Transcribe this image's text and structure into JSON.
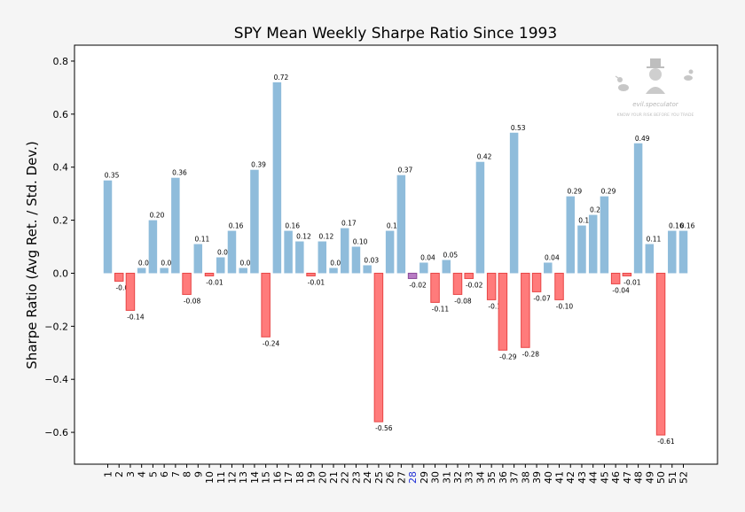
{
  "chart_data": {
    "type": "bar",
    "title": "SPY Mean Weekly Sharpe Ratio Since 1993",
    "xlabel": "",
    "ylabel": "Sharpe Ratio (Avg Ret. / Std. Dev.)",
    "ylim": [
      -0.72,
      0.86
    ],
    "yticks": [
      -0.6,
      -0.4,
      -0.2,
      0.0,
      0.2,
      0.4,
      0.6,
      0.8
    ],
    "ytick_labels": [
      "−0.6",
      "−0.4",
      "−0.2",
      "0.0",
      "0.2",
      "0.4",
      "0.6",
      "0.8"
    ],
    "grid": false,
    "categories": [
      "1",
      "2",
      "3",
      "4",
      "5",
      "6",
      "7",
      "8",
      "9",
      "10",
      "11",
      "12",
      "13",
      "14",
      "15",
      "16",
      "17",
      "18",
      "19",
      "20",
      "21",
      "22",
      "23",
      "24",
      "25",
      "26",
      "27",
      "28",
      "29",
      "30",
      "31",
      "32",
      "33",
      "34",
      "35",
      "36",
      "37",
      "38",
      "39",
      "40",
      "41",
      "42",
      "43",
      "44",
      "45",
      "46",
      "47",
      "48",
      "49",
      "50",
      "51",
      "52"
    ],
    "values": [
      0.35,
      -0.03,
      -0.14,
      0.02,
      0.2,
      0.02,
      0.36,
      -0.08,
      0.11,
      -0.01,
      0.06,
      0.16,
      0.02,
      0.39,
      -0.24,
      0.72,
      0.16,
      0.12,
      -0.01,
      0.12,
      0.02,
      0.17,
      0.1,
      0.03,
      -0.56,
      0.16,
      0.37,
      -0.02,
      0.04,
      -0.11,
      0.05,
      -0.08,
      -0.02,
      0.42,
      -0.1,
      -0.29,
      0.53,
      -0.28,
      -0.07,
      0.04,
      -0.1,
      0.29,
      0.18,
      0.22,
      0.29,
      -0.04,
      -0.01,
      0.49,
      0.11,
      -0.61,
      0.16,
      0.16
    ],
    "value_labels": [
      "0.35",
      "-0.03",
      "-0.14",
      "0.02",
      "0.20",
      "0.02",
      "0.36",
      "-0.08",
      "0.11",
      "-0.01",
      "0.06",
      "0.16",
      "0.02",
      "0.39",
      "-0.24",
      "0.72",
      "0.16",
      "0.12",
      "-0.01",
      "0.12",
      "0.02",
      "0.17",
      "0.10",
      "0.03",
      "-0.56",
      "0.16",
      "0.37",
      "-0.02",
      "0.04",
      "-0.11",
      "0.05",
      "-0.08",
      "-0.02",
      "0.42",
      "-0.10",
      "-0.29",
      "0.53",
      "-0.28",
      "-0.07",
      "0.04",
      "-0.10",
      "0.29",
      "0.18",
      "0.22",
      "0.29",
      "-0.04",
      "-0.01",
      "0.49",
      "0.11",
      "-0.61",
      "0.16",
      "0.16"
    ],
    "highlight_category": "28",
    "colors": {
      "positive": "#8fbcdb",
      "negative_fill": "#ff7b7b",
      "negative_edge": "#e84545",
      "highlight_fill": "#b87cc4",
      "highlight_edge": "#8a4a98",
      "highlight_tick": "#1f2fd6",
      "background": "#f5f5f5",
      "plot_bg": "#ffffff"
    }
  },
  "watermark": {
    "brand": "evil.speculator",
    "tagline": "KNOW YOUR RISK BEFORE YOU TRADE"
  }
}
